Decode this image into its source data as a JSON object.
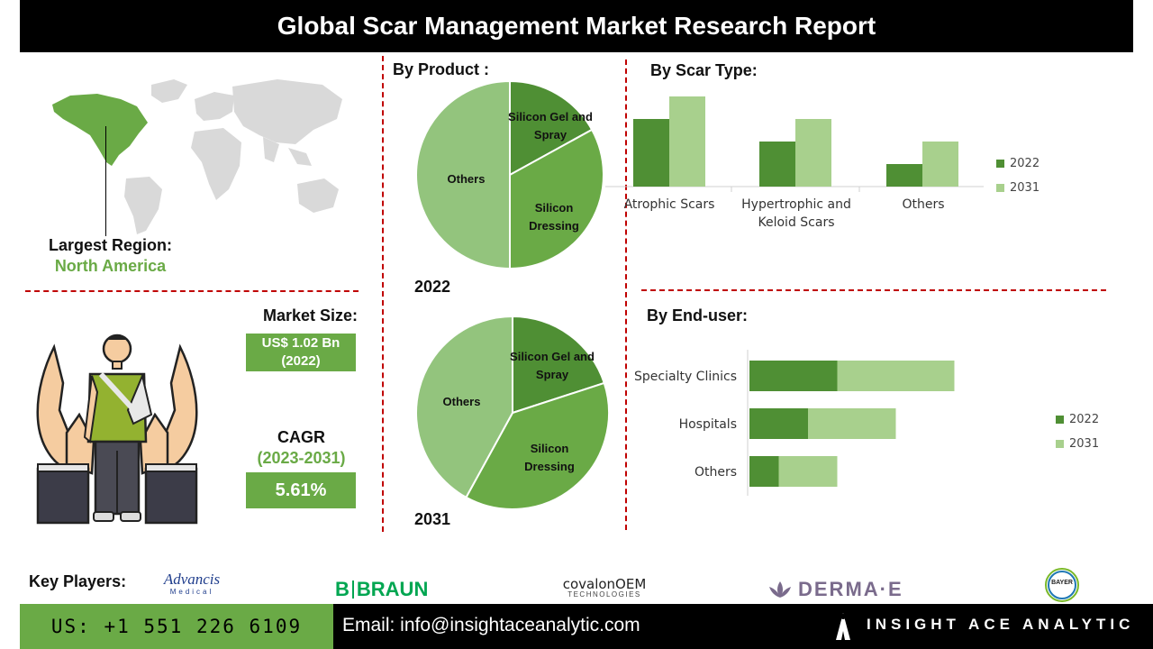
{
  "header": {
    "title": "Global Scar Management Market Research Report"
  },
  "region": {
    "label": "Largest Region:",
    "value": "North America"
  },
  "market": {
    "size_label": "Market Size:",
    "size_value_line1": "US$ 1.02 Bn",
    "size_value_line2": "(2022)",
    "cagr_label": "CAGR",
    "cagr_period": "(2023-2031)",
    "cagr_value": "5.61%"
  },
  "sections": {
    "by_product": "By  Product :",
    "by_scar_type": "By Scar Type:",
    "by_end_user": "By End-user:"
  },
  "colors": {
    "dark_green": "#4f8f34",
    "mid_green": "#6aaa46",
    "light_green": "#a8d08d",
    "pale_green": "#93c47d",
    "red_dash": "#c00000"
  },
  "chart_data": [
    {
      "type": "pie",
      "title": "2022",
      "labels": [
        "Silicon Gel and Spray",
        "Silicon Dressing",
        "Others"
      ],
      "values": [
        17,
        33,
        50
      ]
    },
    {
      "type": "pie",
      "title": "2031",
      "labels": [
        "Silicon Gel and Spray",
        "Silicon Dressing",
        "Others"
      ],
      "values": [
        20,
        38,
        42
      ]
    },
    {
      "type": "bar",
      "title": "By Scar Type:",
      "categories": [
        "Atrophic Scars",
        "Hypertrophic and Keloid Scars",
        "Others"
      ],
      "series": [
        {
          "name": "2022",
          "values": [
            3.0,
            2.0,
            1.0
          ]
        },
        {
          "name": "2031",
          "values": [
            4.0,
            3.0,
            2.0
          ]
        }
      ]
    },
    {
      "type": "bar",
      "orientation": "horizontal",
      "stacked": true,
      "title": "By End-user:",
      "categories": [
        "Specialty Clinics",
        "Hospitals",
        "Others"
      ],
      "series": [
        {
          "name": "2022",
          "values": [
            3.0,
            2.0,
            1.0
          ]
        },
        {
          "name": "2031",
          "values": [
            4.0,
            3.0,
            2.0
          ]
        }
      ]
    }
  ],
  "pie_labels": {
    "y2022": {
      "gel1": "Silicon Gel and",
      "gel2": "Spray",
      "dress1": "Silicon",
      "dress2": "Dressing",
      "others": "Others"
    },
    "y2031": {
      "gel1": "Silicon Gel and",
      "gel2": "Spray",
      "dress1": "Silicon",
      "dress2": "Dressing",
      "others": "Others"
    },
    "year2022": "2022",
    "year2031": "2031"
  },
  "scar_type_labels": {
    "c1": "Atrophic Scars",
    "c2a": "Hypertrophic and",
    "c2b": "Keloid Scars",
    "c3": "Others"
  },
  "end_user_labels": {
    "c1": "Specialty Clinics",
    "c2": "Hospitals",
    "c3": "Others"
  },
  "legend": {
    "a": "2022",
    "b": "2031"
  },
  "key_players": {
    "label": "Key Players:",
    "advancis": "Advancis",
    "advancis_sub": "Medical",
    "bbraun_b": "B",
    "bbraun": "BRAUN",
    "covalon": "covalonOEM",
    "covalon_sub": "TECHNOLOGIES",
    "derma": "DERMA·E",
    "bayer": "BAYER"
  },
  "footer": {
    "phone": "US: +1 551 226 6109",
    "email": "Email: info@insightaceanalytic.com",
    "brand": "INSIGHT ACE ANALYTIC"
  }
}
